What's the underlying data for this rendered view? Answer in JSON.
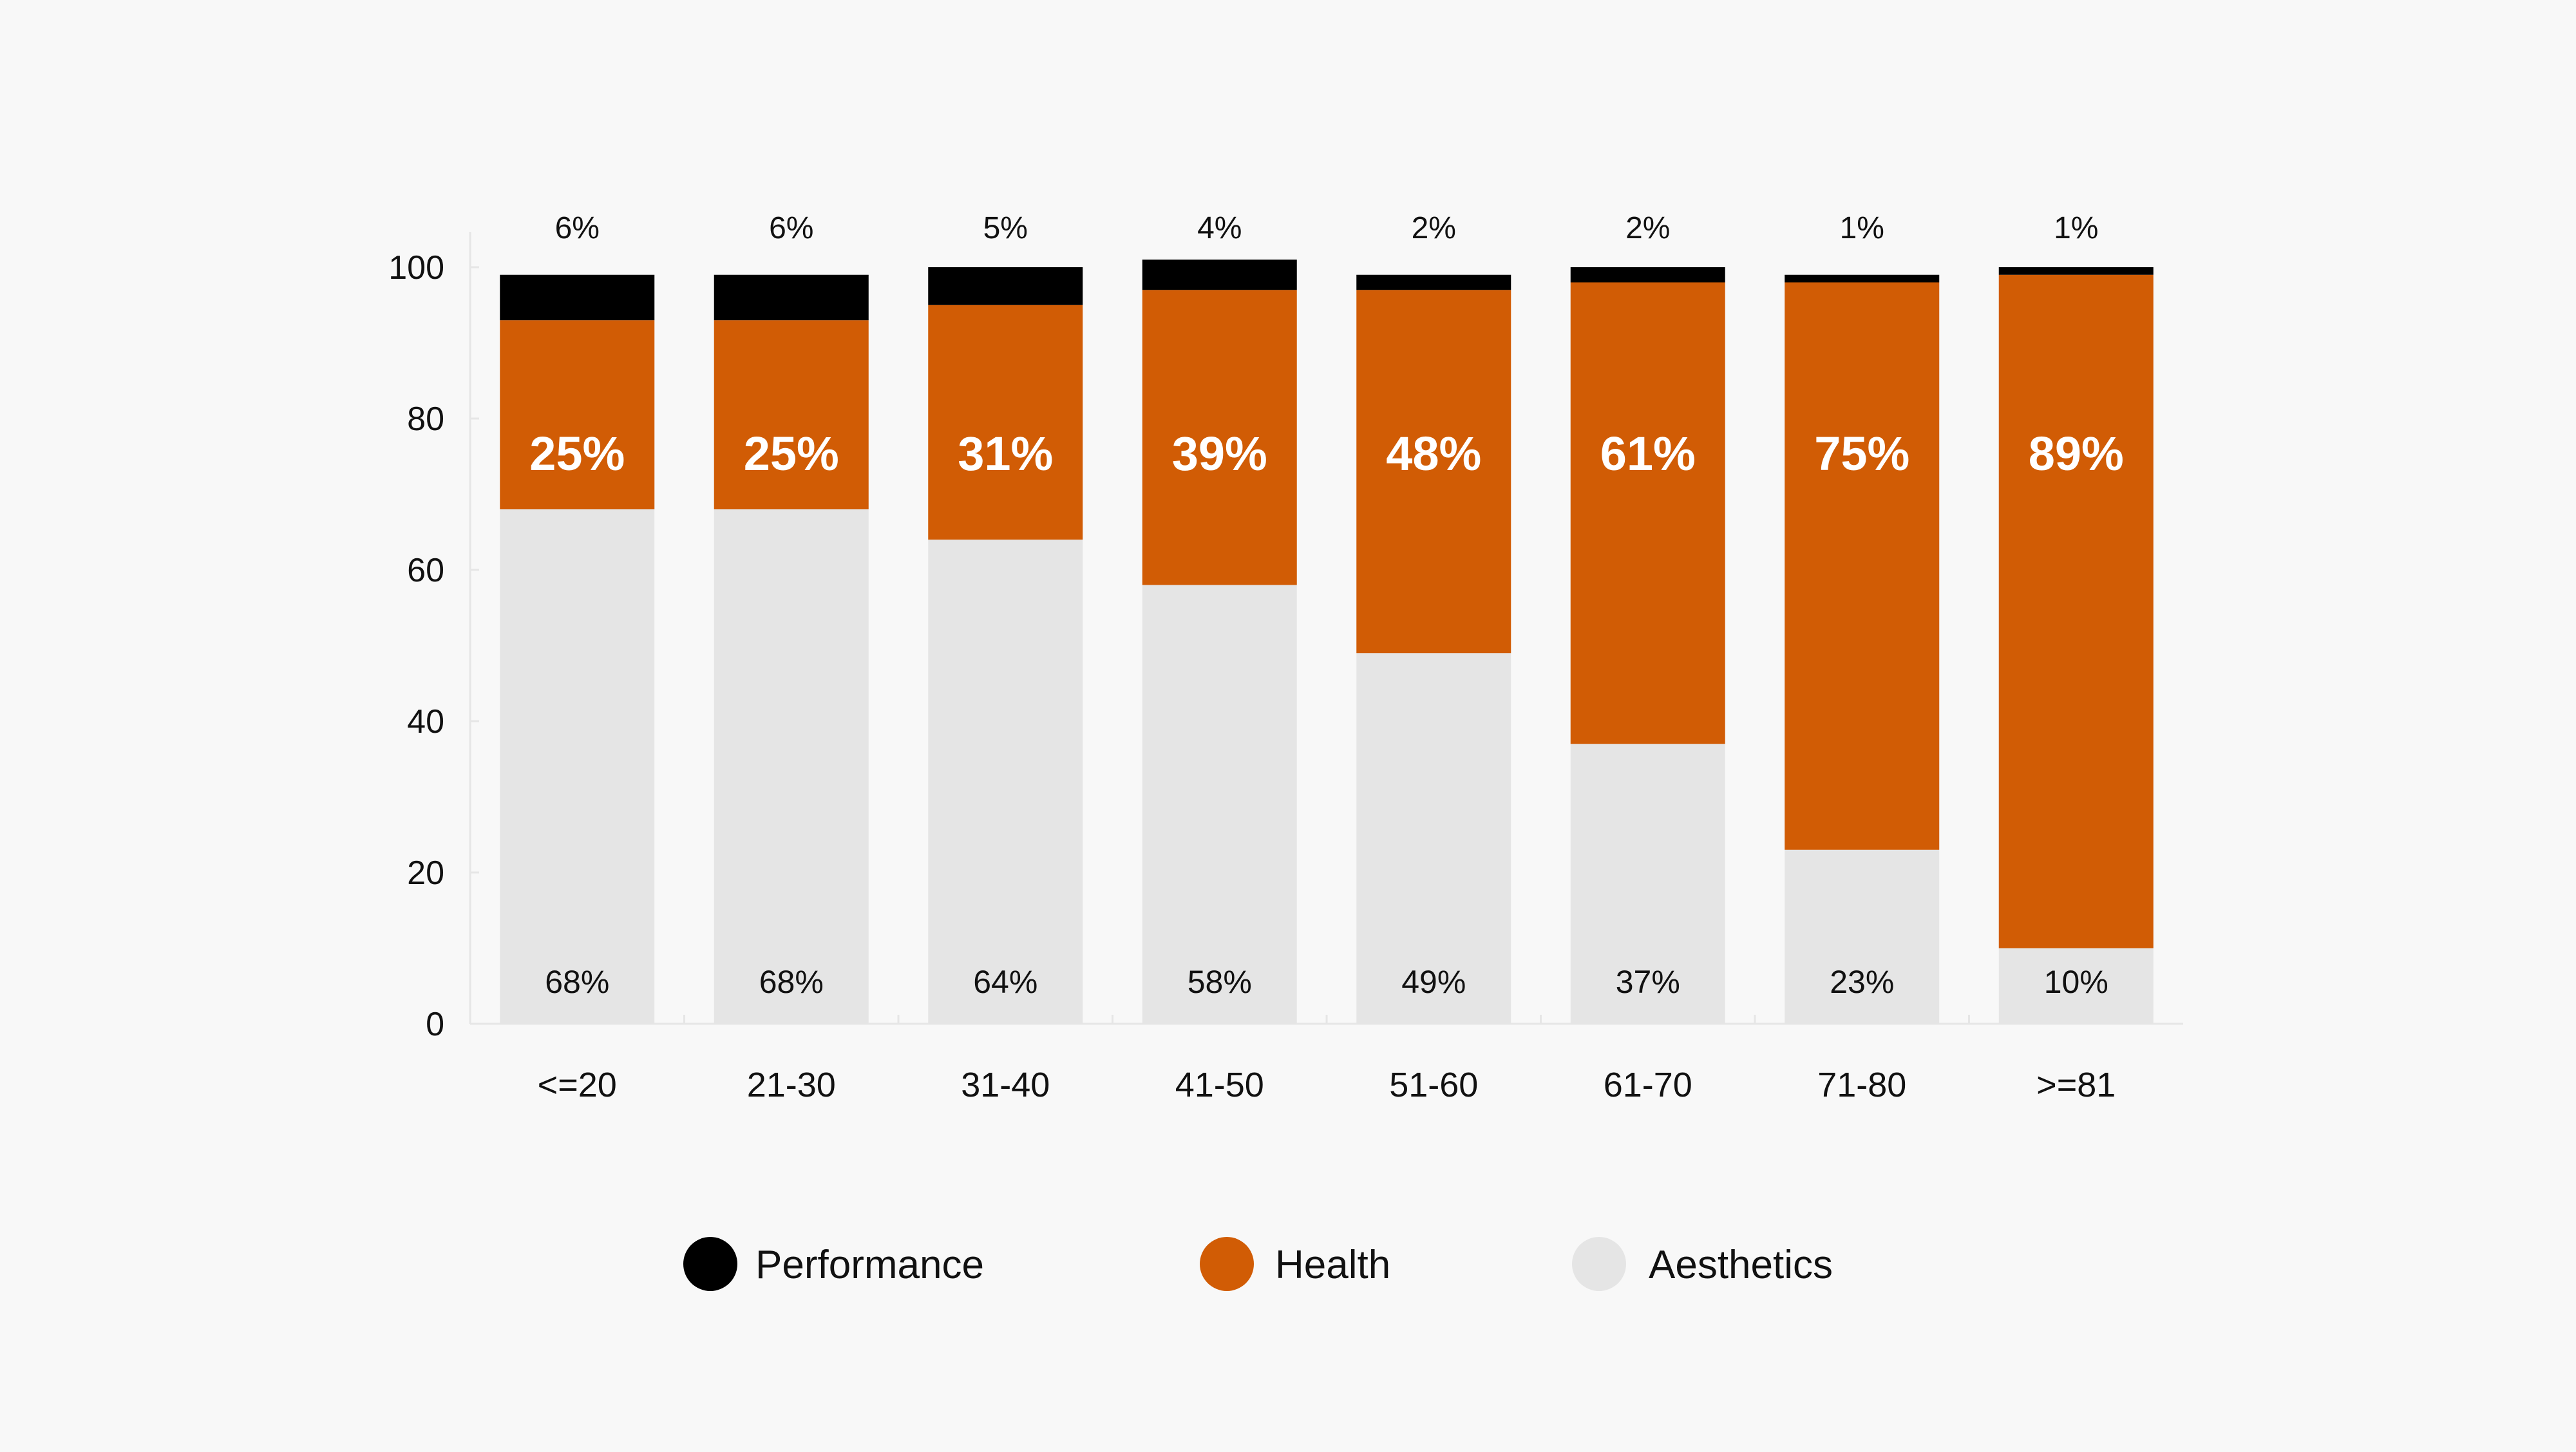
{
  "chart_data": {
    "type": "bar",
    "stacked": true,
    "categories": [
      "<=20",
      "21-30",
      "31-40",
      "41-50",
      "51-60",
      "61-70",
      "71-80",
      ">=81"
    ],
    "series": [
      {
        "name": "Aesthetics",
        "color": "#e5e5e5",
        "values": [
          68,
          68,
          64,
          58,
          49,
          37,
          23,
          10
        ],
        "labels": [
          "68%",
          "68%",
          "64%",
          "58%",
          "49%",
          "37%",
          "23%",
          "10%"
        ]
      },
      {
        "name": "Health",
        "color": "#d15c05",
        "values": [
          25,
          25,
          31,
          39,
          48,
          61,
          75,
          89
        ],
        "labels": [
          "25%",
          "25%",
          "31%",
          "39%",
          "48%",
          "61%",
          "75%",
          "89%"
        ]
      },
      {
        "name": "Performance",
        "color": "#000000",
        "values": [
          6,
          6,
          5,
          4,
          2,
          2,
          1,
          1
        ],
        "labels": [
          "6%",
          "6%",
          "5%",
          "4%",
          "2%",
          "2%",
          "1%",
          "1%"
        ]
      }
    ],
    "y_ticks": [
      "0",
      "20",
      "40",
      "60",
      "80",
      "100"
    ],
    "ylim": [
      0,
      100
    ],
    "xlabel": "",
    "ylabel": "",
    "title": "",
    "grid": false,
    "legend_position": "bottom-center",
    "legend": [
      {
        "name": "Performance",
        "color": "#000000"
      },
      {
        "name": "Health",
        "color": "#d15c05"
      },
      {
        "name": "Aesthetics",
        "color": "#e5e5e5"
      }
    ]
  }
}
